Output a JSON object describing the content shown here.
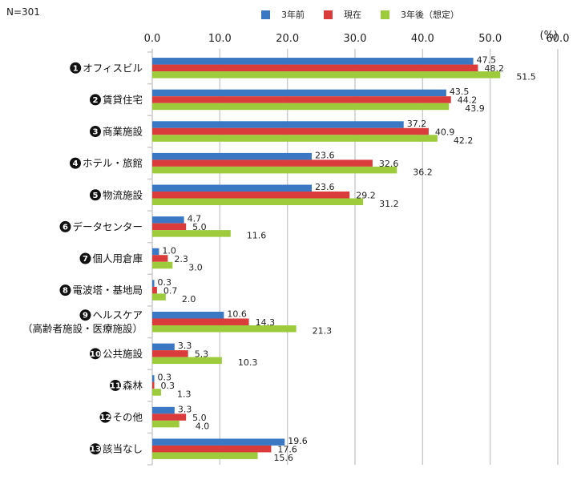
{
  "sample_size_label": "N=301",
  "chart_data": {
    "type": "bar",
    "orientation": "horizontal",
    "title": "",
    "xlabel": "",
    "ylabel": "",
    "unit_label": "(%)",
    "xlim": [
      0,
      60
    ],
    "xticks": [
      "0.0",
      "10.0",
      "20.0",
      "30.0",
      "40.0",
      "50.0",
      "60.0"
    ],
    "grid": true,
    "legend_position": "top",
    "categories": [
      {
        "num": "1",
        "label": "オフィスビル"
      },
      {
        "num": "2",
        "label": "賃貸住宅"
      },
      {
        "num": "3",
        "label": "商業施設"
      },
      {
        "num": "4",
        "label": "ホテル・旅館"
      },
      {
        "num": "5",
        "label": "物流施設"
      },
      {
        "num": "6",
        "label": "データセンター"
      },
      {
        "num": "7",
        "label": "個人用倉庫"
      },
      {
        "num": "8",
        "label": "電波塔・基地局"
      },
      {
        "num": "9",
        "label": "ヘルスケア",
        "label2": "（高齢者施設・医療施設）"
      },
      {
        "num": "10",
        "label": "公共施設"
      },
      {
        "num": "11",
        "label": "森林"
      },
      {
        "num": "12",
        "label": "その他"
      },
      {
        "num": "13",
        "label": "該当なし"
      }
    ],
    "series": [
      {
        "name": "3年前",
        "color": "#3a78c3",
        "values": [
          47.5,
          43.5,
          37.2,
          23.6,
          23.6,
          4.7,
          1.0,
          0.3,
          10.6,
          3.3,
          0.3,
          3.3,
          19.6
        ]
      },
      {
        "name": "現在",
        "color": "#d93c3a",
        "values": [
          48.2,
          44.2,
          40.9,
          32.6,
          29.2,
          5.0,
          2.3,
          0.7,
          14.3,
          5.3,
          0.3,
          5.0,
          17.6
        ]
      },
      {
        "name": "3年後（想定）",
        "color": "#9dcb3c",
        "values": [
          51.5,
          43.9,
          42.2,
          36.2,
          31.2,
          11.6,
          3.0,
          2.0,
          21.3,
          10.3,
          1.3,
          4.0,
          15.6
        ]
      }
    ]
  }
}
